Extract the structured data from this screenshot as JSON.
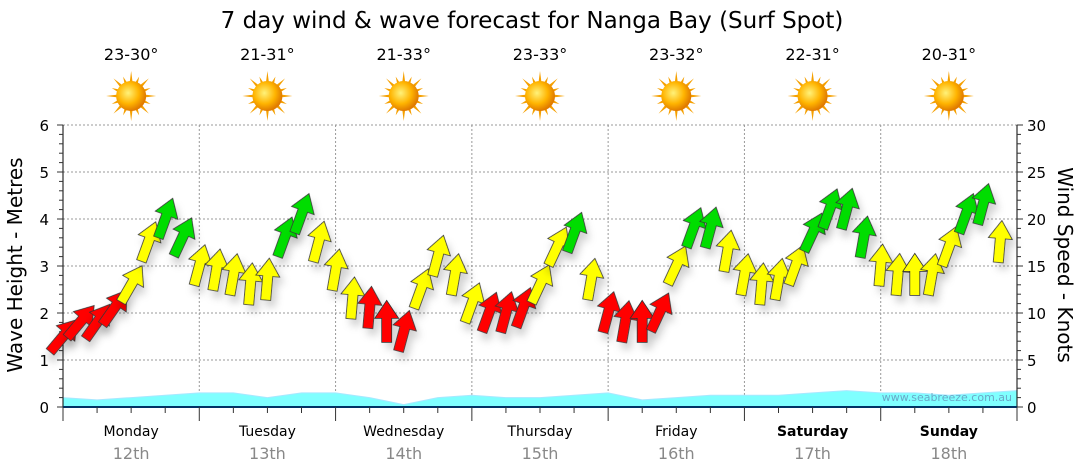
{
  "chart_data": {
    "type": "line",
    "title": "7 day wind & wave forecast for Nanga Bay  (Surf Spot)",
    "ylabel_left": "Wave Height - Metres",
    "ylabel_right": "Wind Speed - Knots",
    "ylim_left": [
      0,
      6
    ],
    "ylim_right": [
      0,
      30
    ],
    "yticks_left": [
      "0",
      "1",
      "2",
      "3",
      "4",
      "5",
      "6"
    ],
    "yticks_right": [
      "0",
      "5",
      "10",
      "15",
      "20",
      "25",
      "30"
    ],
    "grid": true,
    "watermark": "www.seabreeze.com.au",
    "days": [
      {
        "name": "Monday",
        "date": "12th",
        "temp": "23-30°",
        "bold": false
      },
      {
        "name": "Tuesday",
        "date": "13th",
        "temp": "21-31°",
        "bold": false
      },
      {
        "name": "Wednesday",
        "date": "14th",
        "temp": "21-33°",
        "bold": false
      },
      {
        "name": "Thursday",
        "date": "15th",
        "temp": "23-33°",
        "bold": false
      },
      {
        "name": "Friday",
        "date": "16th",
        "temp": "23-32°",
        "bold": false
      },
      {
        "name": "Saturday",
        "date": "17th",
        "temp": "22-31°",
        "bold": true
      },
      {
        "name": "Sunday",
        "date": "18th",
        "temp": "20-31°",
        "bold": true
      }
    ],
    "wind_interval_hours": 3,
    "wind_knots": [
      7.5,
      9,
      9,
      10.5,
      13,
      17.5,
      20,
      18,
      15,
      14.5,
      14,
      13,
      13.5,
      18,
      20.5,
      17.5,
      14.5,
      11.5,
      10.5,
      9,
      8,
      12.5,
      16,
      14,
      11,
      10,
      10,
      10.5,
      13,
      17,
      18.5,
      13.5,
      10,
      9,
      9,
      10,
      15,
      19,
      19,
      16.5,
      14,
      13,
      13.5,
      15,
      18.5,
      21,
      21,
      18,
      15,
      14,
      14,
      14,
      17,
      20.5,
      21.5,
      17.5
    ],
    "wind_direction_deg": [
      40,
      40,
      35,
      35,
      30,
      20,
      20,
      25,
      15,
      10,
      10,
      5,
      5,
      20,
      20,
      15,
      10,
      5,
      5,
      0,
      15,
      20,
      15,
      10,
      20,
      20,
      15,
      20,
      25,
      25,
      20,
      10,
      15,
      10,
      0,
      25,
      25,
      20,
      15,
      10,
      10,
      5,
      10,
      20,
      25,
      20,
      15,
      10,
      5,
      5,
      0,
      10,
      20,
      20,
      15,
      5
    ],
    "wind_colors": {
      "light": "#ff0000",
      "moderate": "#ffff00",
      "strong": "#00dd00"
    },
    "wind_thresholds_knots": [
      11,
      18
    ],
    "wave_interval_hours": 6,
    "wave_m": [
      0.2,
      0.15,
      0.2,
      0.25,
      0.3,
      0.3,
      0.2,
      0.3,
      0.3,
      0.2,
      0.05,
      0.2,
      0.25,
      0.2,
      0.2,
      0.25,
      0.3,
      0.15,
      0.2,
      0.25,
      0.25,
      0.25,
      0.3,
      0.35,
      0.3,
      0.3,
      0.25,
      0.3,
      0.35
    ]
  }
}
